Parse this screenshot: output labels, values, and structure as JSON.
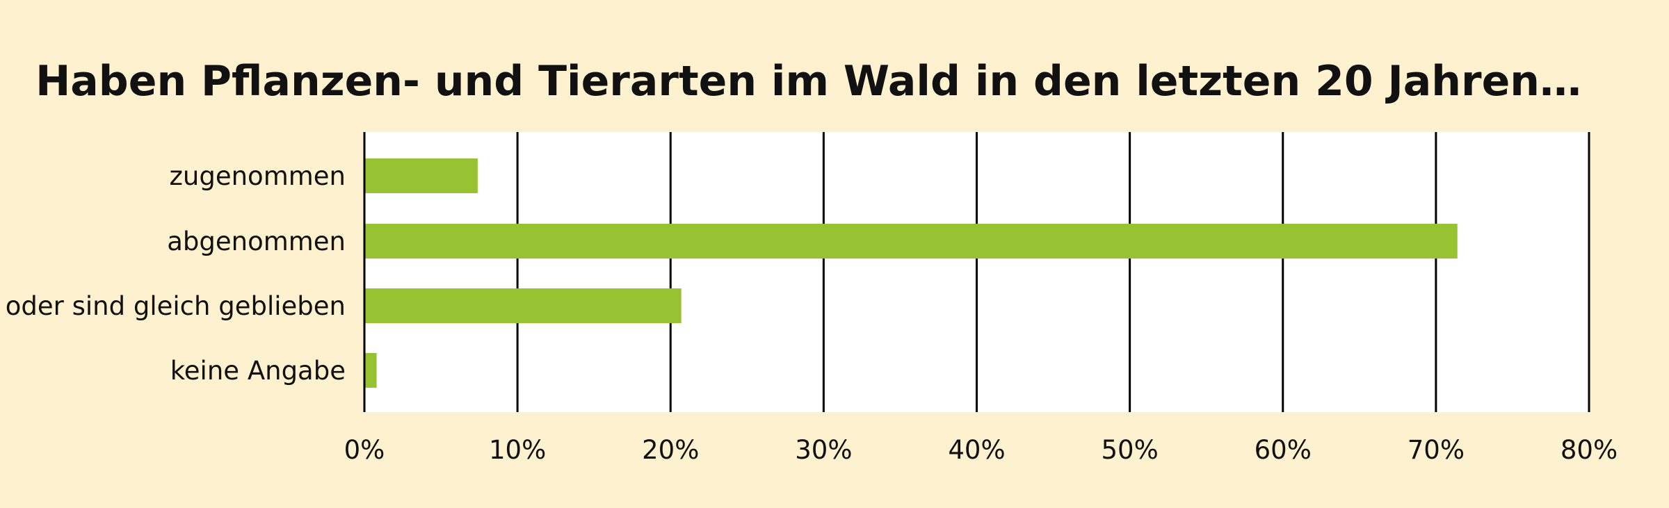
{
  "colors": {
    "background": "#fdf1cf",
    "plot_background": "#ffffff",
    "bar": "#97c231",
    "gridline": "#000000",
    "text": "#111111"
  },
  "chart_data": {
    "type": "bar",
    "orientation": "horizontal",
    "title": "Haben Pflanzen- und Tierarten im Wald in den letzten 20 Jahren…",
    "categories": [
      "zugenommen",
      "abgenommen",
      "oder sind gleich geblieben",
      "keine Angabe"
    ],
    "values": [
      7.4,
      71.4,
      20.7,
      0.8
    ],
    "xlim": [
      0,
      80
    ],
    "x_ticks": [
      0,
      10,
      20,
      30,
      40,
      50,
      60,
      70,
      80
    ],
    "x_tick_labels": [
      "0%",
      "10%",
      "20%",
      "30%",
      "40%",
      "50%",
      "60%",
      "70%",
      "80%"
    ],
    "grid": true,
    "legend": "none"
  }
}
